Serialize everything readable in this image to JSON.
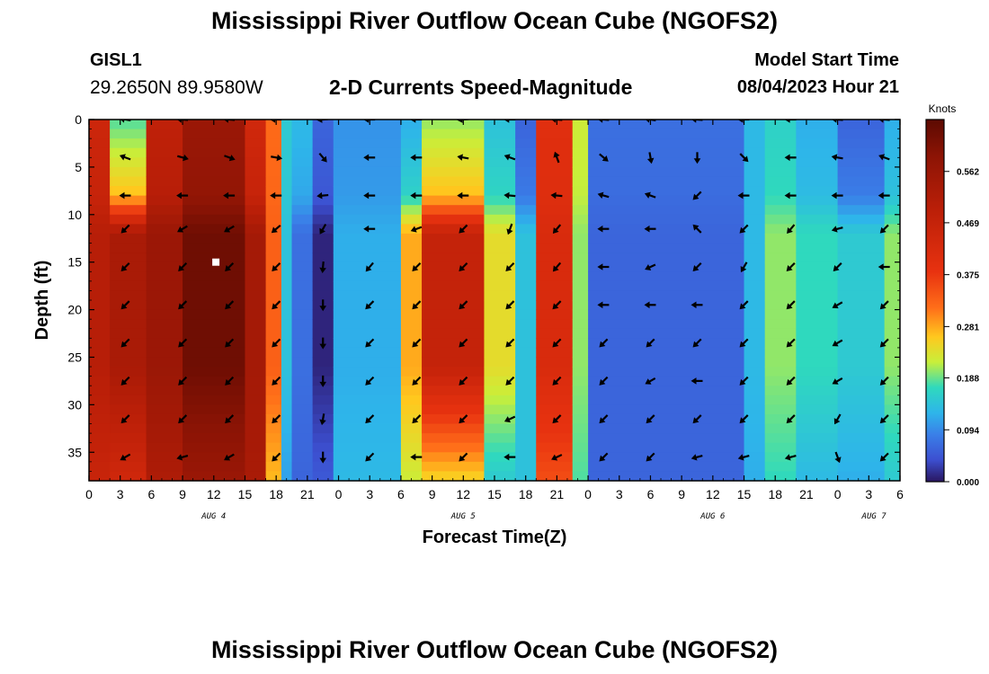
{
  "header": {
    "title": "Mississippi River Outflow Ocean Cube (NGOFS2)",
    "station": "GISL1",
    "coords": "29.2650N  89.9580W",
    "subtitle": "2-D Currents Speed-Magnitude",
    "model_start_label": "Model Start Time",
    "model_start_value": "08/04/2023 Hour 21"
  },
  "footer": {
    "title": "Mississippi River Outflow Ocean Cube (NGOFS2)"
  },
  "chart_data": {
    "type": "heatmap",
    "title": "2-D Currents Speed-Magnitude",
    "xlabel": "Forecast Time(Z)",
    "ylabel": "Depth (ft)",
    "x_unit": "hours since AUG 4 00Z",
    "xlim": [
      0,
      78
    ],
    "ylim": [
      38,
      0
    ],
    "x_ticks": [
      0,
      3,
      6,
      9,
      12,
      15,
      18,
      21,
      24,
      27,
      30,
      33,
      36,
      39,
      42,
      45,
      48,
      51,
      54,
      57,
      60,
      63,
      66,
      69,
      72,
      75,
      78
    ],
    "x_tick_labels": [
      "0",
      "3",
      "6",
      "9",
      "12",
      "15",
      "18",
      "21",
      "0",
      "3",
      "6",
      "9",
      "12",
      "15",
      "18",
      "21",
      "0",
      "3",
      "6",
      "9",
      "12",
      "15",
      "18",
      "21",
      "0",
      "3",
      "6"
    ],
    "y_ticks": [
      0,
      5,
      10,
      15,
      20,
      25,
      30,
      35
    ],
    "y_tick_labels": [
      "0",
      "5",
      "10",
      "15",
      "20",
      "25",
      "30",
      "35"
    ],
    "date_labels": [
      {
        "text": "AUG 4",
        "x": 12
      },
      {
        "text": "AUG 5",
        "x": 36
      },
      {
        "text": "AUG 6",
        "x": 60
      },
      {
        "text": "AUG 7",
        "x": 75.5
      }
    ],
    "colorbar": {
      "unit": "Knots",
      "range": [
        0,
        0.656
      ],
      "tick_values": [
        0.0,
        0.094,
        0.188,
        0.281,
        0.375,
        0.469,
        0.562
      ],
      "tick_labels": [
        "0.000",
        "0.094",
        "0.188",
        "0.281",
        "0.375",
        "0.469",
        "0.562"
      ]
    },
    "time_bands": [
      {
        "x0": 0,
        "x1": 2,
        "top": 0.45,
        "mid": 0.5,
        "low": 0.46
      },
      {
        "x0": 2,
        "x1": 5.5,
        "top": 0.18,
        "mid": 0.53,
        "low": 0.44
      },
      {
        "x0": 5.5,
        "x1": 9,
        "top": 0.48,
        "mid": 0.56,
        "low": 0.52
      },
      {
        "x0": 9,
        "x1": 15,
        "top": 0.56,
        "mid": 0.63,
        "low": 0.56
      },
      {
        "x0": 15,
        "x1": 17,
        "top": 0.44,
        "mid": 0.54,
        "low": 0.53
      },
      {
        "x0": 17,
        "x1": 18.5,
        "top": 0.32,
        "mid": 0.33,
        "low": 0.27
      },
      {
        "x0": 18.5,
        "x1": 19.5,
        "top": 0.15,
        "mid": 0.14,
        "low": 0.11
      },
      {
        "x0": 19.5,
        "x1": 21.5,
        "top": 0.13,
        "mid": 0.07,
        "low": 0.06
      },
      {
        "x0": 21.5,
        "x1": 23.5,
        "top": 0.06,
        "mid": 0.01,
        "low": 0.05
      },
      {
        "x0": 23.5,
        "x1": 30,
        "top": 0.1,
        "mid": 0.12,
        "low": 0.13
      },
      {
        "x0": 30,
        "x1": 32,
        "top": 0.12,
        "mid": 0.28,
        "low": 0.22
      },
      {
        "x0": 32,
        "x1": 38,
        "top": 0.2,
        "mid": 0.47,
        "low": 0.25
      },
      {
        "x0": 38,
        "x1": 41,
        "top": 0.14,
        "mid": 0.24,
        "low": 0.15
      },
      {
        "x0": 41,
        "x1": 43,
        "top": 0.06,
        "mid": 0.14,
        "low": 0.14
      },
      {
        "x0": 43,
        "x1": 46.5,
        "top": 0.4,
        "mid": 0.42,
        "low": 0.35
      },
      {
        "x0": 46.5,
        "x1": 48,
        "top": 0.22,
        "mid": 0.2,
        "low": 0.18
      },
      {
        "x0": 48,
        "x1": 63,
        "top": 0.07,
        "mid": 0.06,
        "low": 0.06
      },
      {
        "x0": 63,
        "x1": 65,
        "top": 0.13,
        "mid": 0.13,
        "low": 0.12
      },
      {
        "x0": 65,
        "x1": 68,
        "top": 0.16,
        "mid": 0.2,
        "low": 0.17
      },
      {
        "x0": 68,
        "x1": 72,
        "top": 0.12,
        "mid": 0.17,
        "low": 0.13
      },
      {
        "x0": 72,
        "x1": 76.5,
        "top": 0.06,
        "mid": 0.15,
        "low": 0.12
      },
      {
        "x0": 76.5,
        "x1": 78,
        "top": 0.12,
        "mid": 0.2,
        "low": 0.15
      }
    ],
    "vector_times": [
      3.5,
      9,
      13.5,
      18,
      22.5,
      27,
      31.5,
      36,
      40.5,
      45,
      49.5,
      54,
      58.5,
      63,
      67.5,
      72,
      76.5
    ],
    "vector_depths": [
      0,
      4,
      8,
      11.5,
      15.5,
      19.5,
      23.5,
      27.5,
      31.5,
      35.5
    ],
    "vector_directions_deg": [
      [
        190,
        185,
        185,
        180,
        175,
        180,
        180,
        175,
        180,
        185,
        185,
        190,
        185,
        180,
        180,
        185,
        185
      ],
      [
        200,
        15,
        20,
        10,
        50,
        180,
        180,
        190,
        200,
        250,
        40,
        80,
        90,
        45,
        180,
        190,
        200
      ],
      [
        180,
        180,
        180,
        180,
        175,
        180,
        180,
        180,
        185,
        185,
        195,
        200,
        135,
        180,
        180,
        180,
        180
      ],
      [
        135,
        150,
        150,
        140,
        120,
        180,
        160,
        135,
        110,
        130,
        180,
        180,
        225,
        135,
        130,
        165,
        135
      ],
      [
        135,
        135,
        135,
        135,
        95,
        130,
        135,
        135,
        135,
        130,
        180,
        155,
        135,
        120,
        135,
        135,
        180
      ],
      [
        135,
        135,
        135,
        135,
        90,
        135,
        135,
        135,
        135,
        135,
        180,
        180,
        180,
        135,
        135,
        150,
        135
      ],
      [
        135,
        135,
        135,
        135,
        90,
        135,
        135,
        135,
        135,
        135,
        135,
        135,
        135,
        135,
        135,
        150,
        135
      ],
      [
        135,
        135,
        135,
        135,
        90,
        135,
        135,
        135,
        135,
        135,
        135,
        150,
        180,
        135,
        135,
        150,
        135
      ],
      [
        135,
        135,
        135,
        135,
        100,
        135,
        135,
        135,
        155,
        135,
        135,
        135,
        135,
        135,
        135,
        120,
        135
      ],
      [
        150,
        165,
        150,
        135,
        90,
        135,
        180,
        135,
        180,
        155,
        135,
        135,
        165,
        165,
        165,
        70,
        135
      ]
    ],
    "marker": {
      "x": 12.2,
      "y": 15
    }
  }
}
